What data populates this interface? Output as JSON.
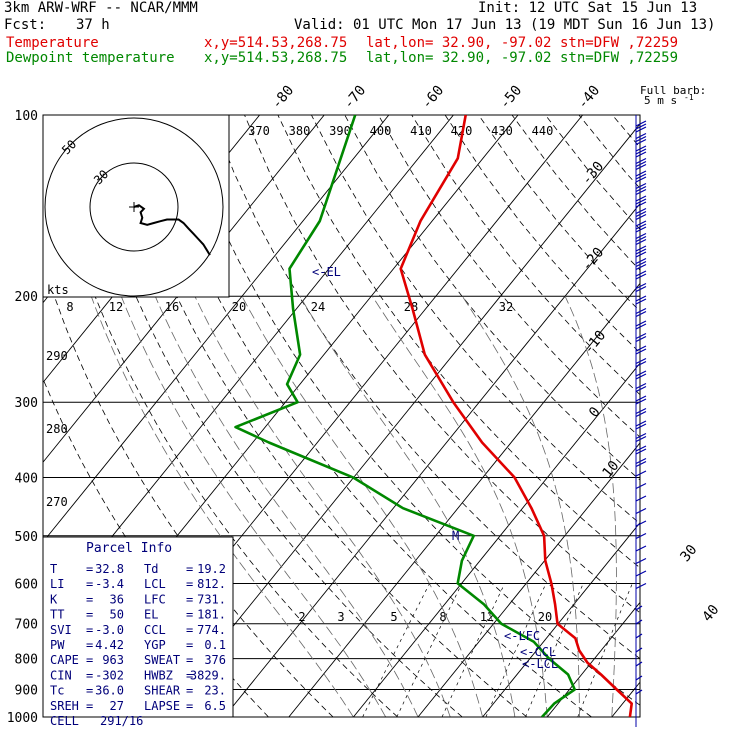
{
  "header": {
    "model": "3km ARW-WRF -- NCAR/MMM",
    "init": "Init: 12 UTC Sat 15 Jun 13",
    "fcst_label": "Fcst:",
    "fcst_value": "37 h",
    "valid": "Valid: 01 UTC Mon 17 Jun 13 (19 MDT Sun 16 Jun 13)",
    "lines": [
      {
        "name": "Temperature",
        "xy": "x,y=514.53,268.75",
        "latlon": "lat,lon= 32.90, -97.02",
        "stn": "stn=DFW ,72259",
        "color": "#e00000"
      },
      {
        "name": "Dewpoint temperature",
        "xy": "x,y=514.53,268.75",
        "latlon": "lat,lon= 32.90, -97.02",
        "stn": "stn=DFW ,72259",
        "color": "#008800"
      }
    ]
  },
  "barb_legend": {
    "line1": "Full barb:",
    "line2": "5 m s",
    "sup": "-1"
  },
  "parcel": {
    "title": "Parcel Info",
    "rows": [
      [
        "T",
        "32.8",
        "Td",
        "19.2"
      ],
      [
        "LI",
        "-3.4",
        "LCL",
        "812."
      ],
      [
        "K",
        "36",
        "LFC",
        "731."
      ],
      [
        "TT",
        "50",
        "EL",
        "181."
      ],
      [
        "SVI",
        "-3.0",
        "CCL",
        "774."
      ],
      [
        "PW",
        "4.42",
        "YGP",
        "0.1"
      ],
      [
        "CAPE",
        "963",
        "SWEAT",
        "376"
      ],
      [
        "CIN",
        "-302",
        "HWBZ",
        "3829."
      ],
      [
        "Tc",
        "36.0",
        "SHEAR",
        "23."
      ],
      [
        "SREH",
        "27",
        "LAPSE",
        "6.5"
      ],
      [
        "CELL",
        "291/16",
        "",
        ""
      ]
    ]
  },
  "chart_data": {
    "type": "line",
    "title": "",
    "pressure_levels": [
      100,
      200,
      300,
      400,
      500,
      600,
      700,
      800,
      900,
      1000
    ],
    "isotherm_labels": [
      -80,
      -70,
      -60,
      -50,
      -40,
      -30,
      -20,
      -10,
      0,
      10,
      30,
      40
    ],
    "theta_labels": [
      370,
      380,
      390,
      400,
      410,
      420,
      430,
      440
    ],
    "theta_side_labels": [
      290,
      280,
      270
    ],
    "mixing_ratio_labels_top": [
      8,
      12,
      16,
      20,
      24,
      28,
      32
    ],
    "mixing_ratio_labels_bottom": [
      2,
      3,
      5,
      8,
      12,
      20
    ],
    "hodograph": {
      "units": "kts",
      "ring_labels": [
        50,
        30
      ]
    },
    "annotations": [
      "<-EL",
      "<-LFC",
      "<-CCL",
      "<-LCL",
      "M"
    ],
    "series": [
      {
        "name": "Temperature",
        "color": "#e00000",
        "p": [
          100,
          118,
          150,
          180,
          210,
          250,
          300,
          350,
          400,
          450,
          500,
          550,
          600,
          650,
          700,
          740,
          775,
          812,
          850,
          900,
          950,
          1000
        ],
        "t": [
          -68.1,
          -63.9,
          -61.8,
          -58.9,
          -52.0,
          -44.4,
          -34.0,
          -24.5,
          -15.1,
          -8.6,
          -3.2,
          0.1,
          3.9,
          7.1,
          9.9,
          14.5,
          16.6,
          19.4,
          23.0,
          27.3,
          31.4,
          32.8
        ]
      },
      {
        "name": "Dewpoint temperature",
        "color": "#008800",
        "p": [
          100,
          150,
          180,
          210,
          250,
          280,
          300,
          330,
          350,
          400,
          450,
          500,
          550,
          600,
          650,
          700,
          750,
          800,
          850,
          900,
          950,
          1000
        ],
        "t": [
          -85.2,
          -77.4,
          -76.1,
          -70.5,
          -63.7,
          -62.0,
          -58.1,
          -64.6,
          -57.5,
          -40.1,
          -28.5,
          -14.1,
          -12.8,
          -10.6,
          -3.9,
          1.2,
          8.5,
          13.0,
          17.9,
          20.8,
          19.4,
          19.2
        ]
      }
    ],
    "hodograph_trace": {
      "name": "hodograph",
      "points": [
        [
          0,
          0
        ],
        [
          3,
          1
        ],
        [
          6,
          -1
        ],
        [
          4,
          -3
        ],
        [
          5,
          -6
        ],
        [
          4,
          -9
        ],
        [
          8,
          -10
        ],
        [
          12,
          -9
        ],
        [
          16,
          -8
        ],
        [
          20,
          -7
        ],
        [
          24,
          -7
        ],
        [
          27,
          -7
        ],
        [
          30,
          -9
        ],
        [
          33,
          -12
        ],
        [
          36,
          -15
        ],
        [
          39,
          -18
        ],
        [
          42,
          -21
        ],
        [
          44,
          -24
        ],
        [
          46,
          -27
        ]
      ]
    }
  }
}
